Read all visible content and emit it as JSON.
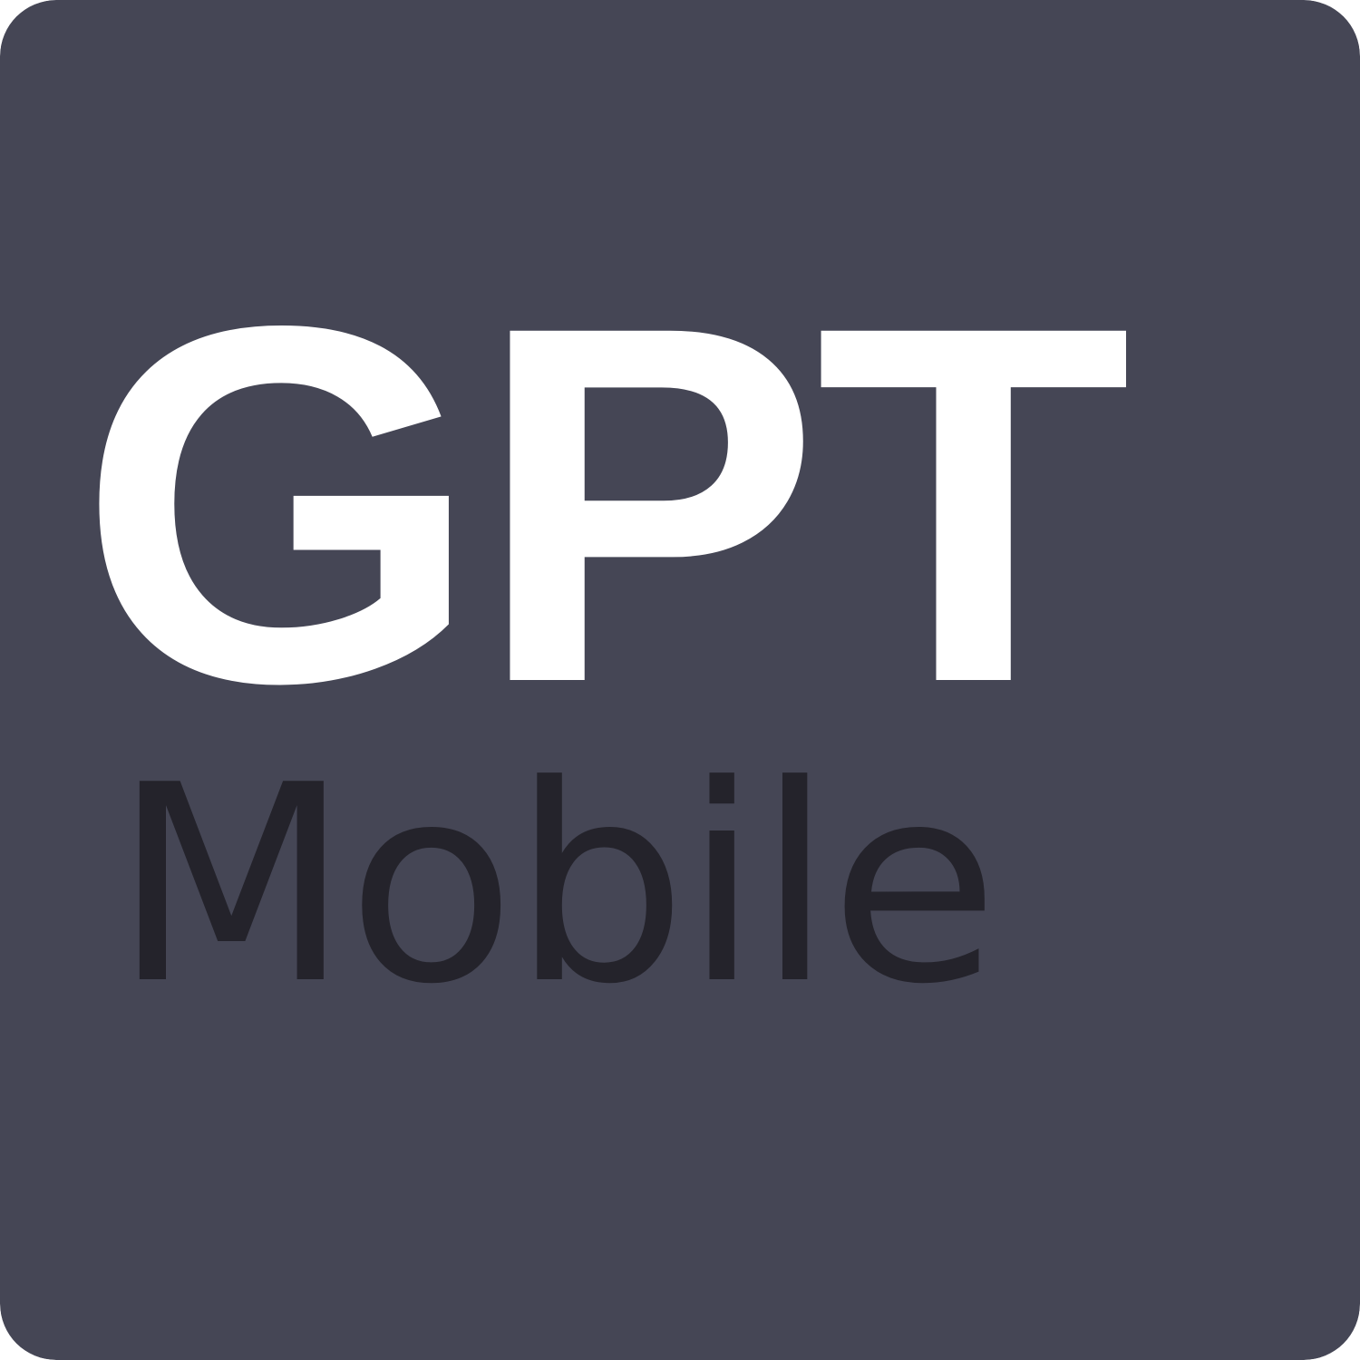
{
  "icon": {
    "primary_text": "GPT",
    "secondary_text": "Mobile",
    "background_color": "#454655",
    "primary_text_color": "#ffffff",
    "secondary_text_color": "#24232b"
  }
}
